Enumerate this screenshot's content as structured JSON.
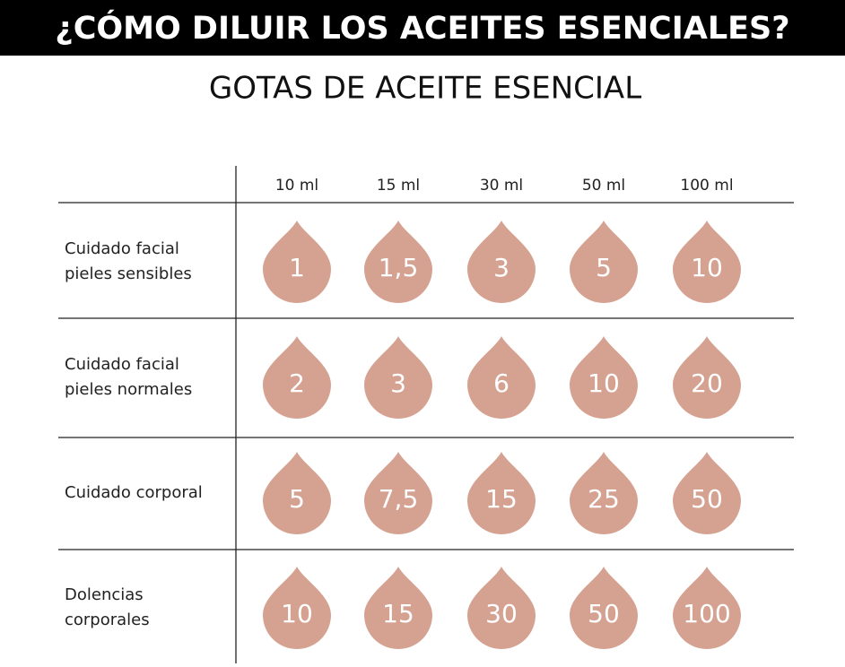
{
  "header": {
    "title": "¿CÓMO DILUIR LOS ACEITES ESENCIALES?",
    "subtitle": "GOTAS DE ACEITE ESENCIAL"
  },
  "table": {
    "columns": [
      "10 ml",
      "15 ml",
      "30 ml",
      "50 ml",
      "100 ml"
    ],
    "rows": [
      {
        "label": [
          "Cuidado facial",
          "pieles sensibles"
        ],
        "values": [
          "1",
          "1,5",
          "3",
          "5",
          "10"
        ]
      },
      {
        "label": [
          "Cuidado facial",
          "pieles normales"
        ],
        "values": [
          "2",
          "3",
          "6",
          "10",
          "20"
        ]
      },
      {
        "label": [
          "Cuidado corporal"
        ],
        "values": [
          "5",
          "7,5",
          "15",
          "25",
          "50"
        ]
      },
      {
        "label": [
          "Dolencias",
          "corporales"
        ],
        "values": [
          "10",
          "15",
          "30",
          "50",
          "100"
        ]
      }
    ]
  }
}
